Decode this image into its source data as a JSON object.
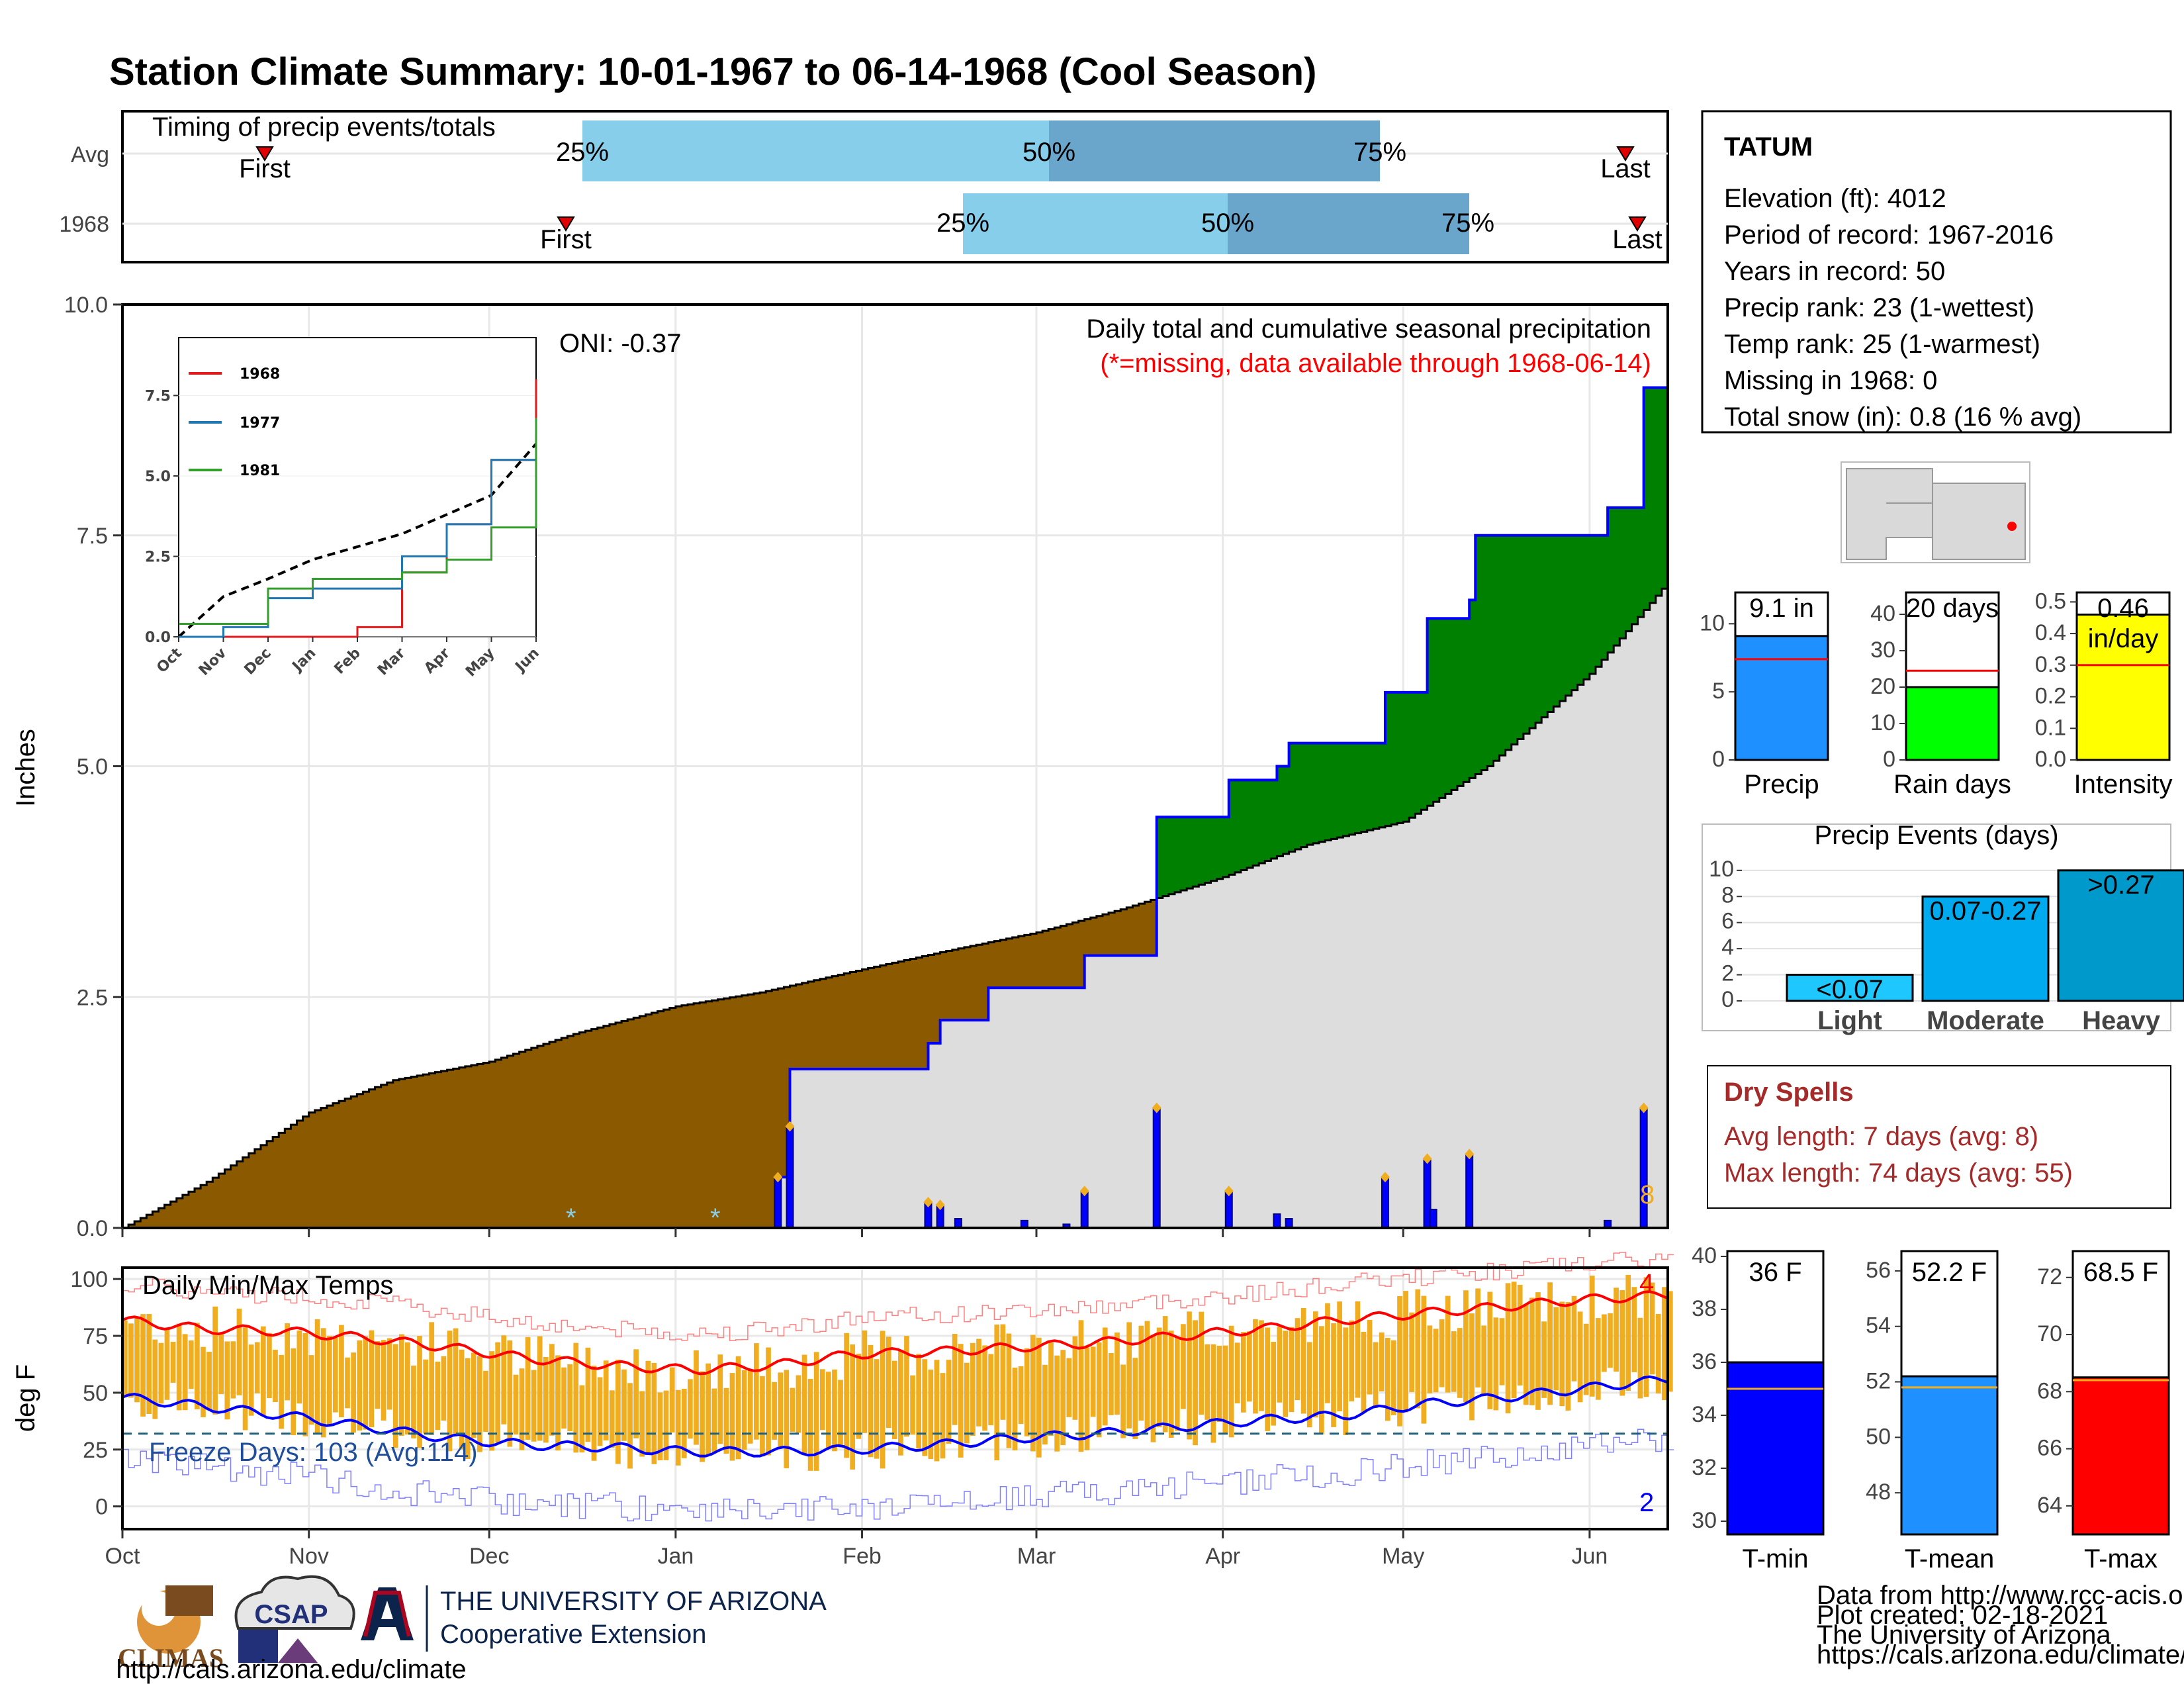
{
  "title": "Station Climate Summary: 10-01-1967 to 06-14-1968 (Cool Season)",
  "colors": {
    "title": "#2a3f8f",
    "brown": "#8b5a00",
    "green": "#008000",
    "gray": "#dddddd",
    "blue": "#0000ff",
    "light_blue": "#87ceeb",
    "mid_blue": "#6aa5cc",
    "orange": "#f0ad1f",
    "red": "#ff0000"
  },
  "timing": {
    "title": "Timing of precip events/totals",
    "rows": [
      {
        "label": "Avg",
        "first": "First",
        "last": "Last",
        "q25": "25%",
        "q50": "50%",
        "q75": "75%"
      },
      {
        "label": "1968",
        "first": "First",
        "last": "Last",
        "q25": "25%",
        "q50": "50%",
        "q75": "75%"
      }
    ]
  },
  "precip_panel": {
    "ylabel": "Inches",
    "yticks": [
      "0.0",
      "2.5",
      "5.0",
      "7.5",
      "10.0"
    ],
    "oni": "ONI: -0.37",
    "caption": "Daily total and cumulative seasonal precipitation",
    "missing_note": "(*=missing, data available through 1968-06-14)",
    "missing_count": "8"
  },
  "inset": {
    "legend": [
      "1968",
      "1977",
      "1981"
    ],
    "yticks": [
      "0.0",
      "2.5",
      "5.0",
      "7.5"
    ],
    "xticks": [
      "Oct",
      "Nov",
      "Dec",
      "Jan",
      "Feb",
      "Mar",
      "Apr",
      "May",
      "Jun"
    ]
  },
  "temp_panel": {
    "ylabel": "deg F",
    "title": "Daily Min/Max Temps",
    "yticks": [
      "0",
      "25",
      "50",
      "75",
      "100"
    ],
    "freeze": "Freeze Days: 103 (Avg:114)",
    "max_count": "4",
    "min_count": "2"
  },
  "months": [
    "Oct",
    "Nov",
    "Dec",
    "Jan",
    "Feb",
    "Mar",
    "Apr",
    "May",
    "Jun"
  ],
  "station": {
    "name": "TATUM",
    "lines": [
      "Elevation (ft): 4012",
      "Period of record: 1967-2016",
      "Years in record: 50",
      "Precip rank: 23 (1-wettest)",
      "Temp rank: 25 (1-warmest)",
      "Missing in 1968: 0",
      "Total snow (in): 0.8 (16 % avg)"
    ]
  },
  "mini_bars": [
    {
      "label": "Precip",
      "value": "9.1 in",
      "yticks": [
        "0",
        "5",
        "10"
      ]
    },
    {
      "label": "Rain days",
      "value": "20 days",
      "yticks": [
        "0",
        "10",
        "20",
        "30",
        "40"
      ]
    },
    {
      "label": "Intensity",
      "value": "0.46",
      "unit": "in/day",
      "yticks": [
        "0.0",
        "0.1",
        "0.2",
        "0.3",
        "0.4",
        "0.5"
      ]
    }
  ],
  "events": {
    "title": "Precip Events (days)",
    "yticks": [
      "0",
      "2",
      "4",
      "6",
      "8",
      "10"
    ],
    "bars": [
      {
        "label": "Light",
        "range": "<0.07",
        "value": 2
      },
      {
        "label": "Moderate",
        "range": "0.07-0.27",
        "value": 8
      },
      {
        "label": "Heavy",
        "range": ">0.27",
        "value": 10
      }
    ]
  },
  "dry_spells": {
    "title": "Dry Spells",
    "avg": "Avg length: 7 days (avg: 8)",
    "max": "Max length: 74 days (avg: 55)"
  },
  "temp_bars": [
    {
      "label": "T-min",
      "value": "36 F",
      "yticks": [
        "30",
        "32",
        "34",
        "36",
        "38",
        "40"
      ]
    },
    {
      "label": "T-mean",
      "value": "52.2 F",
      "yticks": [
        "48",
        "50",
        "52",
        "54",
        "56"
      ]
    },
    {
      "label": "T-max",
      "value": "68.5 F",
      "yticks": [
        "64",
        "66",
        "68",
        "70",
        "72"
      ]
    }
  ],
  "footer": {
    "credits": [
      "Data from http://www.rcc-acis.org/",
      "Plot created: 02-18-2021",
      "The University of Arizona",
      "https://cals.arizona.edu/climate/"
    ],
    "climas": "CLIMAS",
    "csap": "CSAP",
    "csap_url": "http://cals.arizona.edu/climate",
    "ua_line1": "THE UNIVERSITY OF ARIZONA",
    "ua_line2": "Cooperative Extension"
  },
  "chart_data": {
    "type": "area",
    "title": "Daily total and cumulative seasonal precipitation",
    "ylabel": "Inches",
    "ylim": [
      0,
      10
    ],
    "x_range": [
      "1967-10-01",
      "1968-06-14"
    ],
    "cumulative_1968": [
      [
        "1968-01-18",
        0.55
      ],
      [
        "1968-01-20",
        1.72
      ],
      [
        "1968-02-11",
        1.72
      ],
      [
        "1968-02-12",
        2.0
      ],
      [
        "1968-02-14",
        2.25
      ],
      [
        "1968-02-21",
        2.25
      ],
      [
        "1968-02-22",
        2.6
      ],
      [
        "1968-03-01",
        2.6
      ],
      [
        "1968-03-09",
        2.95
      ],
      [
        "1968-03-20",
        2.95
      ],
      [
        "1968-03-21",
        4.45
      ],
      [
        "1968-04-01",
        4.45
      ],
      [
        "1968-04-02",
        4.85
      ],
      [
        "1968-04-09",
        4.85
      ],
      [
        "1968-04-10",
        5.0
      ],
      [
        "1968-04-12",
        5.25
      ],
      [
        "1968-04-27",
        5.25
      ],
      [
        "1968-04-28",
        5.8
      ],
      [
        "1968-05-04",
        5.8
      ],
      [
        "1968-05-05",
        6.6
      ],
      [
        "1968-05-11",
        6.6
      ],
      [
        "1968-05-12",
        6.8
      ],
      [
        "1968-05-13",
        7.5
      ],
      [
        "1968-06-03",
        7.5
      ],
      [
        "1968-06-04",
        7.8
      ],
      [
        "1968-06-09",
        7.8
      ],
      [
        "1968-06-10",
        9.1
      ]
    ],
    "daily_precip": [
      [
        "1968-01-18",
        0.55
      ],
      [
        "1968-01-20",
        1.1
      ],
      [
        "1968-02-12",
        0.28
      ],
      [
        "1968-02-14",
        0.25
      ],
      [
        "1968-02-17",
        0.1
      ],
      [
        "1968-02-28",
        0.08
      ],
      [
        "1968-03-06",
        0.04
      ],
      [
        "1968-03-09",
        0.4
      ],
      [
        "1968-03-21",
        1.3
      ],
      [
        "1968-04-02",
        0.4
      ],
      [
        "1968-04-10",
        0.15
      ],
      [
        "1968-04-12",
        0.1
      ],
      [
        "1968-04-28",
        0.55
      ],
      [
        "1968-05-05",
        0.75
      ],
      [
        "1968-05-06",
        0.2
      ],
      [
        "1968-05-12",
        0.8
      ],
      [
        "1968-06-04",
        0.08
      ],
      [
        "1968-06-10",
        1.3
      ]
    ],
    "average_cumulative": [
      [
        "1967-10-01",
        0.0
      ],
      [
        "1967-10-15",
        0.5
      ],
      [
        "1967-11-01",
        1.25
      ],
      [
        "1967-11-15",
        1.6
      ],
      [
        "1967-12-01",
        1.8
      ],
      [
        "1967-12-15",
        2.1
      ],
      [
        "1968-01-01",
        2.4
      ],
      [
        "1968-01-15",
        2.55
      ],
      [
        "1968-02-01",
        2.8
      ],
      [
        "1968-02-15",
        3.0
      ],
      [
        "1968-03-01",
        3.2
      ],
      [
        "1968-03-15",
        3.45
      ],
      [
        "1968-04-01",
        3.8
      ],
      [
        "1968-04-15",
        4.15
      ],
      [
        "1968-05-01",
        4.4
      ],
      [
        "1968-05-15",
        5.0
      ],
      [
        "1968-06-01",
        6.0
      ],
      [
        "1968-06-14",
        7.0
      ]
    ],
    "inset_series": [
      {
        "name": "1968",
        "values": [
          0,
          0,
          0,
          0,
          0.3,
          2.0,
          3.5,
          5.5,
          8.0
        ]
      },
      {
        "name": "1977",
        "values": [
          0,
          0.3,
          1.2,
          1.5,
          1.5,
          2.5,
          3.5,
          5.5,
          6.5
        ]
      },
      {
        "name": "1981",
        "values": [
          0.4,
          0.4,
          1.5,
          1.8,
          1.8,
          2.0,
          2.4,
          3.4,
          6.8
        ]
      }
    ],
    "temperature": {
      "ylim": [
        -10,
        105
      ],
      "avg_max": [
        82,
        78,
        77,
        74,
        70,
        65,
        62,
        60,
        62,
        67,
        68,
        70,
        72,
        75,
        78,
        82,
        85,
        88,
        91,
        93
      ],
      "avg_min": [
        48,
        44,
        40,
        35,
        30,
        27,
        26,
        24,
        24,
        25,
        27,
        30,
        32,
        35,
        38,
        40,
        45,
        48,
        52,
        56
      ],
      "freeze_line": 32
    }
  }
}
